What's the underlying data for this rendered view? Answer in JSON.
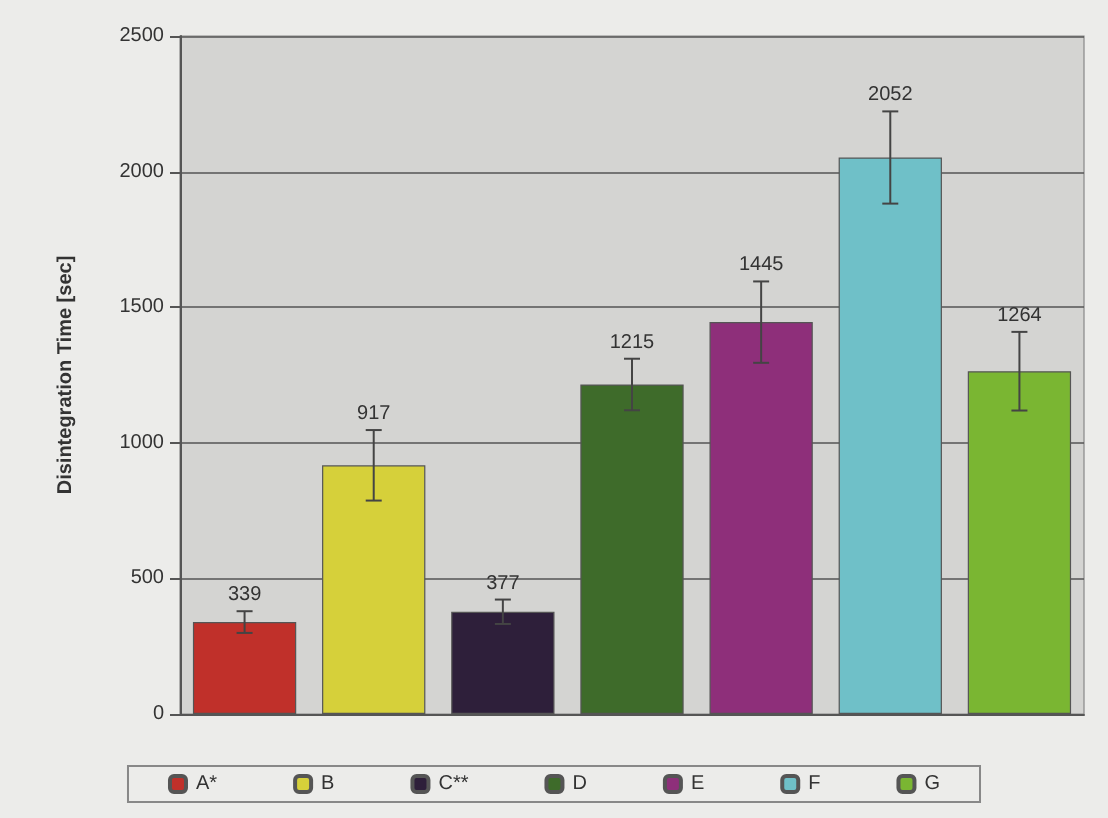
{
  "chart_data": {
    "type": "bar",
    "ylabel": "Disintegration Time [sec]",
    "categories": [
      null,
      null,
      null,
      null,
      null,
      null,
      null
    ],
    "stacked": true,
    "series": [
      {
        "name": "A*",
        "color": "#c0302a",
        "values": [
          339,
          null,
          null,
          null,
          null,
          null,
          null
        ],
        "errors": [
          40,
          null,
          null,
          null,
          null,
          null,
          null
        ]
      },
      {
        "name": "B",
        "color": "#d6d03a",
        "values": [
          null,
          917,
          null,
          null,
          null,
          null,
          null
        ],
        "errors": [
          null,
          130,
          null,
          null,
          null,
          null,
          null
        ]
      },
      {
        "name": "C**",
        "color": "#2e1f3a",
        "values": [
          null,
          null,
          377,
          null,
          null,
          null,
          null
        ],
        "errors": [
          null,
          null,
          45,
          null,
          null,
          null,
          null
        ]
      },
      {
        "name": "D",
        "color": "#3e6b2a",
        "values": [
          null,
          null,
          null,
          1215,
          null,
          null,
          null
        ],
        "errors": [
          null,
          null,
          null,
          95,
          null,
          null,
          null
        ]
      },
      {
        "name": "E",
        "color": "#8e2f7a",
        "values": [
          null,
          null,
          null,
          null,
          1445,
          null,
          null
        ],
        "errors": [
          null,
          null,
          null,
          null,
          150,
          null,
          null
        ]
      },
      {
        "name": "F",
        "color": "#6fc0c8",
        "values": [
          null,
          null,
          null,
          null,
          null,
          2052,
          null
        ],
        "errors": [
          null,
          null,
          null,
          null,
          null,
          170,
          null
        ]
      },
      {
        "name": "G",
        "color": "#7ab632",
        "values": [
          null,
          null,
          null,
          null,
          null,
          null,
          1264
        ],
        "errors": [
          null,
          null,
          null,
          null,
          null,
          null,
          145
        ]
      }
    ],
    "data_labels": true,
    "ylim": [
      0,
      2500
    ],
    "yticks": [
      0,
      500,
      1000,
      1500,
      2000,
      2500
    ],
    "grid": "y",
    "legend": "bottom"
  }
}
